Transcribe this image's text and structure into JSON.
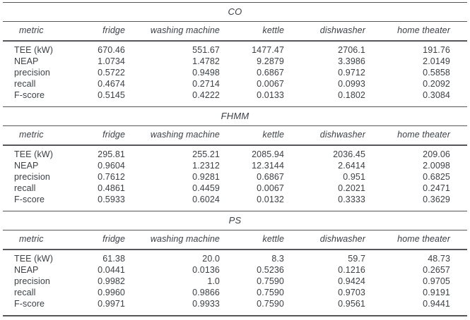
{
  "colors": {
    "text": "#3c4146",
    "rule": "#54565a",
    "background": "#ffffff"
  },
  "columns": [
    "metric",
    "fridge",
    "washing machine",
    "kettle",
    "dishwasher",
    "home theater"
  ],
  "tables": [
    {
      "title": "CO",
      "rows": [
        {
          "label": "TEE (kW)",
          "values": [
            "670.46",
            "551.67",
            "1477.47",
            "2706.1",
            "191.76"
          ]
        },
        {
          "label": "NEAP",
          "values": [
            "1.0734",
            "1.4782",
            "9.2879",
            "3.3986",
            "2.0149"
          ]
        },
        {
          "label": "precision",
          "values": [
            "0.5722",
            "0.9498",
            "0.6867",
            "0.9712",
            "0.5858"
          ]
        },
        {
          "label": "recall",
          "values": [
            "0.4674",
            "0.2714",
            "0.0067",
            "0.0993",
            "0.2092"
          ]
        },
        {
          "label": "F-score",
          "values": [
            "0.5145",
            "0.4222",
            "0.0133",
            "0.1802",
            "0.3084"
          ]
        }
      ]
    },
    {
      "title": "FHMM",
      "rows": [
        {
          "label": "TEE (kW)",
          "values": [
            "295.81",
            "255.21",
            "2085.94",
            "2036.45",
            "209.06"
          ]
        },
        {
          "label": "NEAP",
          "values": [
            "0.9604",
            "1.2312",
            "12.3144",
            "2.6414",
            "2.0098"
          ]
        },
        {
          "label": "precision",
          "values": [
            "0.7612",
            "0.9281",
            "0.6867",
            "0.951",
            "0.6825"
          ]
        },
        {
          "label": "recall",
          "values": [
            "0.4861",
            "0.4459",
            "0.0067",
            "0.2021",
            "0.2471"
          ]
        },
        {
          "label": "F-score",
          "values": [
            "0.5933",
            "0.6024",
            "0.0132",
            "0.3333",
            "0.3629"
          ]
        }
      ]
    },
    {
      "title": "PS",
      "rows": [
        {
          "label": "TEE (kW)",
          "values": [
            "61.38",
            "20.0",
            "8.3",
            "59.7",
            "48.73"
          ]
        },
        {
          "label": "NEAP",
          "values": [
            "0.0441",
            "0.0136",
            "0.5236",
            "0.1216",
            "0.2657"
          ]
        },
        {
          "label": "precision",
          "values": [
            "0.9982",
            "1.0",
            "0.7590",
            "0.9424",
            "0.9705"
          ]
        },
        {
          "label": "recall",
          "values": [
            "0.9960",
            "0.9866",
            "0.7590",
            "0.9703",
            "0.9191"
          ]
        },
        {
          "label": "F-score",
          "values": [
            "0.9971",
            "0.9933",
            "0.7590",
            "0.9561",
            "0.9441"
          ]
        }
      ]
    }
  ]
}
